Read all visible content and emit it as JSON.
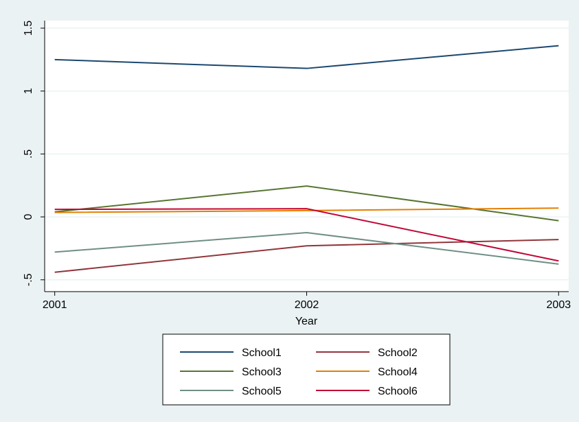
{
  "chart_data": {
    "type": "line",
    "x_label": "Year",
    "x": [
      2001,
      2002,
      2003
    ],
    "xlim": [
      2000.96,
      2003.04
    ],
    "xticks": [
      2001,
      2002,
      2003
    ],
    "ylim": [
      -0.594,
      1.56
    ],
    "yticks": [
      {
        "value": -0.5,
        "label": "-.5"
      },
      0,
      {
        "value": 0.5,
        "label": ".5"
      },
      1,
      1.5
    ],
    "grid": true,
    "series": [
      {
        "name": "School1",
        "color": "#1a476f",
        "values": [
          1.25,
          1.18,
          1.36
        ]
      },
      {
        "name": "School2",
        "color": "#90353b",
        "values": [
          -0.44,
          -0.23,
          -0.18
        ]
      },
      {
        "name": "School3",
        "color": "#55752f",
        "values": [
          0.04,
          0.245,
          -0.03
        ]
      },
      {
        "name": "School4",
        "color": "#e37e00",
        "values": [
          0.035,
          0.05,
          0.07
        ]
      },
      {
        "name": "School5",
        "color": "#6e8e84",
        "values": [
          -0.28,
          -0.125,
          -0.375
        ]
      },
      {
        "name": "School6",
        "color": "#c10534",
        "values": [
          0.06,
          0.065,
          -0.35
        ]
      }
    ]
  }
}
